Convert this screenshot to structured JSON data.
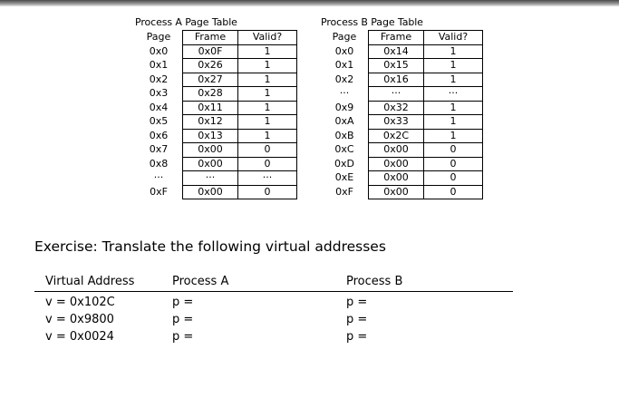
{
  "process_a": {
    "title": "Process A Page Table",
    "headers": {
      "page": "Page",
      "frame": "Frame",
      "valid": "Valid?"
    },
    "rows": [
      {
        "page": "0x0",
        "frame": "0x0F",
        "valid": "1"
      },
      {
        "page": "0x1",
        "frame": "0x26",
        "valid": "1"
      },
      {
        "page": "0x2",
        "frame": "0x27",
        "valid": "1"
      },
      {
        "page": "0x3",
        "frame": "0x28",
        "valid": "1"
      },
      {
        "page": "0x4",
        "frame": "0x11",
        "valid": "1"
      },
      {
        "page": "0x5",
        "frame": "0x12",
        "valid": "1"
      },
      {
        "page": "0x6",
        "frame": "0x13",
        "valid": "1"
      },
      {
        "page": "0x7",
        "frame": "0x00",
        "valid": "0"
      },
      {
        "page": "0x8",
        "frame": "0x00",
        "valid": "0"
      },
      {
        "page": "···",
        "frame": "···",
        "valid": "···"
      },
      {
        "page": "0xF",
        "frame": "0x00",
        "valid": "0"
      }
    ]
  },
  "process_b": {
    "title": "Process B Page Table",
    "headers": {
      "page": "Page",
      "frame": "Frame",
      "valid": "Valid?"
    },
    "rows": [
      {
        "page": "0x0",
        "frame": "0x14",
        "valid": "1"
      },
      {
        "page": "0x1",
        "frame": "0x15",
        "valid": "1"
      },
      {
        "page": "0x2",
        "frame": "0x16",
        "valid": "1"
      },
      {
        "page": "···",
        "frame": "···",
        "valid": "···"
      },
      {
        "page": "0x9",
        "frame": "0x32",
        "valid": "1"
      },
      {
        "page": "0xA",
        "frame": "0x33",
        "valid": "1"
      },
      {
        "page": "0xB",
        "frame": "0x2C",
        "valid": "1"
      },
      {
        "page": "0xC",
        "frame": "0x00",
        "valid": "0"
      },
      {
        "page": "0xD",
        "frame": "0x00",
        "valid": "0"
      },
      {
        "page": "0xE",
        "frame": "0x00",
        "valid": "0"
      },
      {
        "page": "0xF",
        "frame": "0x00",
        "valid": "0"
      }
    ]
  },
  "exercise": {
    "title": "Exercise: Translate the following virtual addresses",
    "headers": {
      "virtual": "Virtual Address",
      "a": "Process A",
      "b": "Process B"
    },
    "rows": [
      {
        "virtual": "v = 0x102C",
        "a": "p =",
        "b": "p ="
      },
      {
        "virtual": "v = 0x9800",
        "a": "p =",
        "b": "p ="
      },
      {
        "virtual": "v = 0x0024",
        "a": "p =",
        "b": "p ="
      }
    ]
  }
}
